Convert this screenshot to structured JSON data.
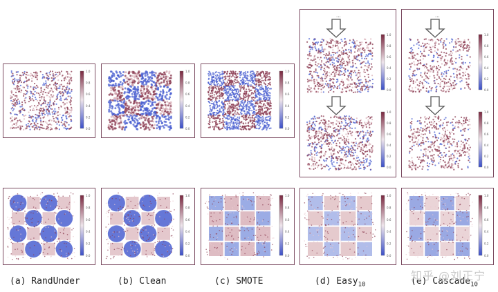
{
  "figure": {
    "captions": [
      {
        "label": "(a) RandUnder",
        "sub": ""
      },
      {
        "label": "(b) Clean",
        "sub": ""
      },
      {
        "label": "(c) SMOTE",
        "sub": ""
      },
      {
        "label": "(d) Easy",
        "sub": "10"
      },
      {
        "label": "(e) Cascade",
        "sub": "10"
      }
    ],
    "colorbar_ticks": [
      "1.0",
      "0.8",
      "0.6",
      "0.4",
      "0.2",
      "0.0"
    ],
    "ellipsis": "...",
    "watermark": "知乎 @刘正宁",
    "colors": {
      "blue": "#4a5fd0",
      "red": "#8a3a50",
      "pink": "#d8b0b8",
      "frame": "#7a4a60"
    }
  }
}
